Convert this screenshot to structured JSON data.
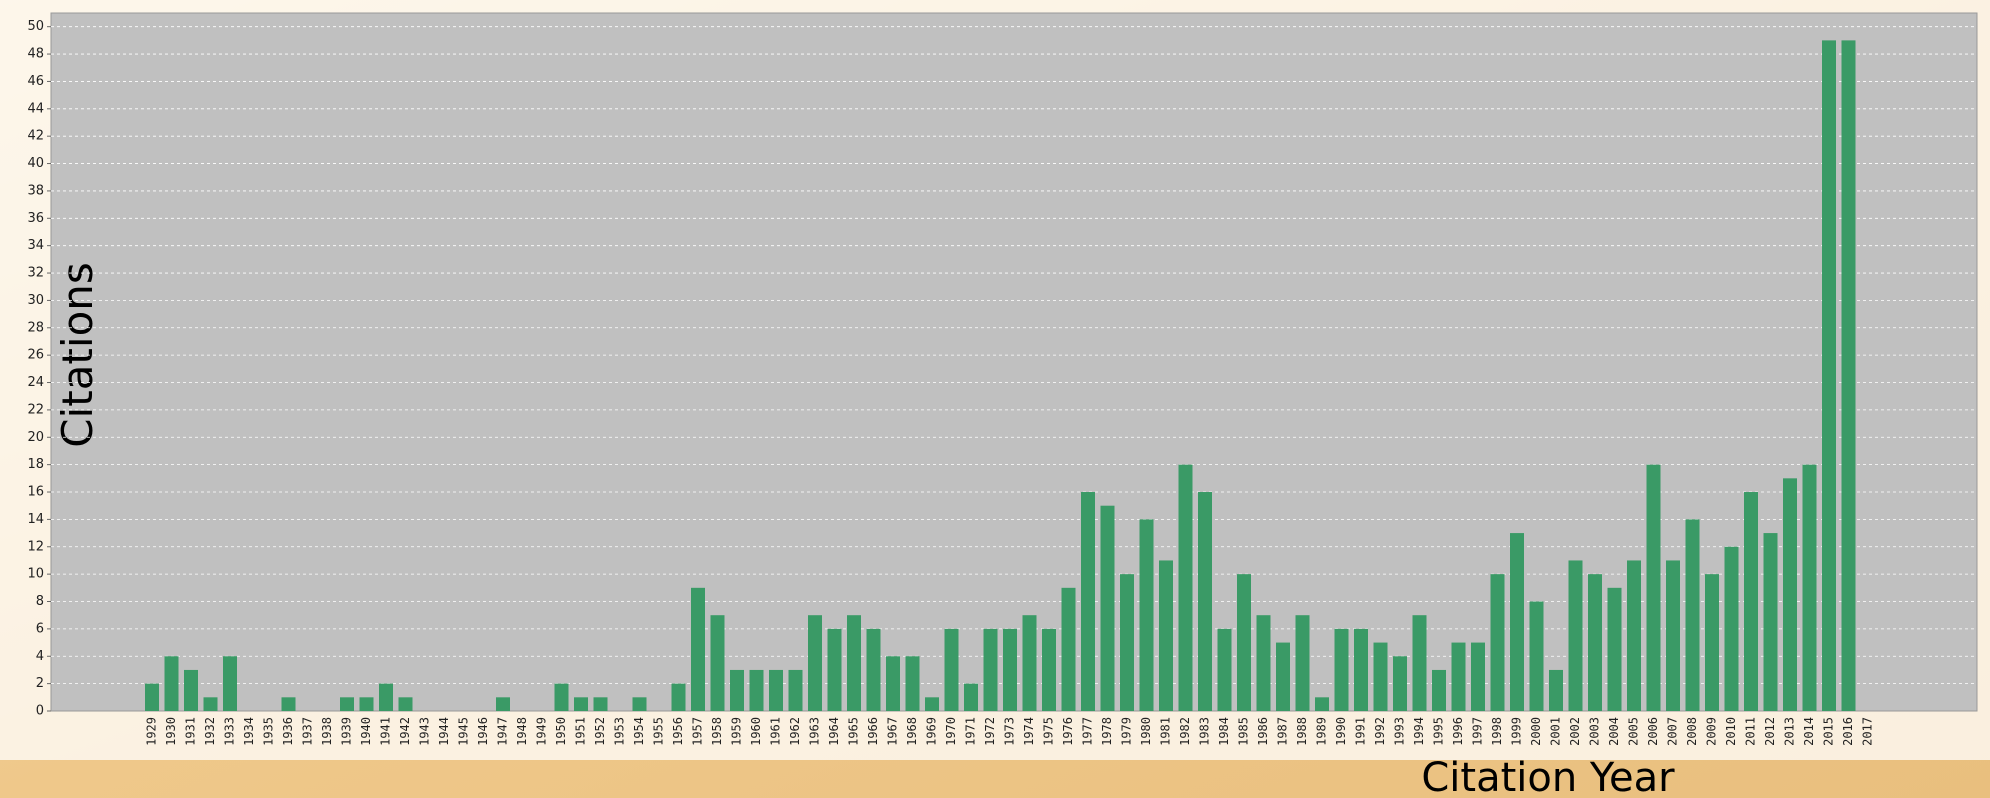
{
  "chart_data": {
    "type": "bar",
    "y_label": "Citations",
    "x_label": "Citation Year",
    "categories": [
      "1929",
      "1930",
      "1931",
      "1932",
      "1933",
      "1934",
      "1935",
      "1936",
      "1937",
      "1938",
      "1939",
      "1940",
      "1941",
      "1942",
      "1943",
      "1944",
      "1945",
      "1946",
      "1947",
      "1948",
      "1949",
      "1950",
      "1951",
      "1952",
      "1953",
      "1954",
      "1955",
      "1956",
      "1957",
      "1958",
      "1959",
      "1960",
      "1961",
      "1962",
      "1963",
      "1964",
      "1965",
      "1966",
      "1967",
      "1968",
      "1969",
      "1970",
      "1971",
      "1972",
      "1973",
      "1974",
      "1975",
      "1976",
      "1977",
      "1978",
      "1979",
      "1980",
      "1981",
      "1982",
      "1983",
      "1984",
      "1985",
      "1986",
      "1987",
      "1988",
      "1989",
      "1990",
      "1991",
      "1992",
      "1993",
      "1994",
      "1995",
      "1996",
      "1997",
      "1998",
      "1999",
      "2000",
      "2001",
      "2002",
      "2003",
      "2004",
      "2005",
      "2006",
      "2007",
      "2008",
      "2009",
      "2010",
      "2011",
      "2012",
      "2013",
      "2014",
      "2015",
      "2016",
      "2017"
    ],
    "values": [
      2,
      4,
      3,
      1,
      4,
      0,
      0,
      1,
      0,
      0,
      1,
      1,
      2,
      1,
      0,
      0,
      0,
      0,
      1,
      0,
      0,
      2,
      1,
      1,
      0,
      1,
      0,
      2,
      9,
      7,
      3,
      3,
      3,
      3,
      7,
      6,
      7,
      6,
      4,
      4,
      1,
      6,
      2,
      6,
      6,
      7,
      6,
      9,
      16,
      15,
      10,
      14,
      11,
      18,
      16,
      6,
      10,
      7,
      5,
      7,
      1,
      6,
      6,
      5,
      4,
      7,
      3,
      5,
      5,
      10,
      13,
      8,
      3,
      11,
      10,
      9,
      11,
      18,
      11,
      14,
      10,
      12,
      16,
      13,
      17,
      18,
      49,
      49,
      0
    ],
    "color": "#3a9a66",
    "ylim": [
      0,
      51
    ],
    "yticks": [
      0,
      2,
      4,
      6,
      8,
      10,
      12,
      14,
      16,
      18,
      20,
      22,
      24,
      26,
      28,
      30,
      32,
      34,
      36,
      38,
      40,
      42,
      44,
      46,
      48,
      50
    ],
    "grid": true
  }
}
